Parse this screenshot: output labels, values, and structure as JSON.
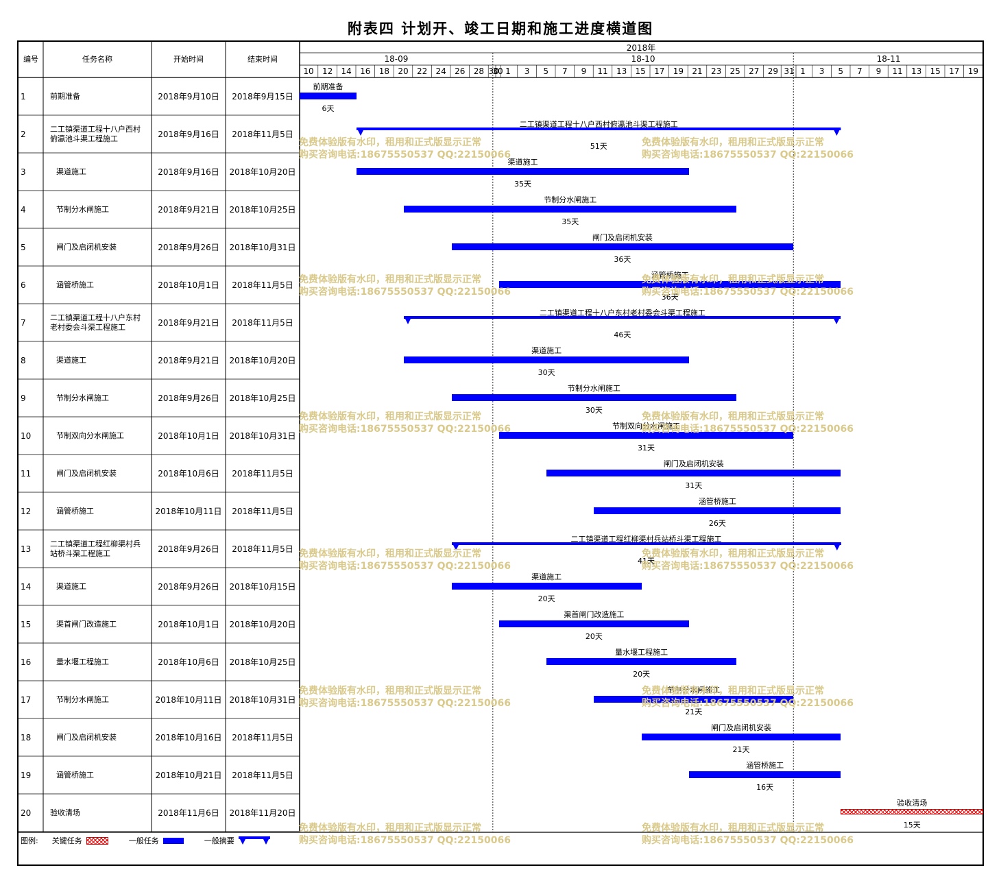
{
  "title": "附表四  计划开、竣工日期和施工进度横道图",
  "columns": {
    "no": "编号",
    "name": "任务名称",
    "start": "开始时间",
    "end": "结束时间"
  },
  "timeline": {
    "year_label": "2018年",
    "months": [
      "18-09",
      "18-10",
      "18-11"
    ],
    "day_ticks": [
      "10",
      "12",
      "14",
      "16",
      "18",
      "20",
      "22",
      "24",
      "26",
      "28",
      "30",
      "30",
      "1",
      "3",
      "5",
      "7",
      "9",
      "11",
      "13",
      "15",
      "17",
      "19",
      "21",
      "23",
      "25",
      "27",
      "29",
      "31",
      "1",
      "3",
      "5",
      "7",
      "9",
      "11",
      "13",
      "15",
      "17",
      "19"
    ]
  },
  "tasks": [
    {
      "no": "1",
      "name": "前期准备",
      "start": "2018年9月10日",
      "end": "2018年9月15日",
      "s": 0,
      "e": 6,
      "type": "normal",
      "bar_label": "前期准备",
      "duration": "6天",
      "indent": false
    },
    {
      "no": "2",
      "name": "二工镇渠道工程十八户西村俯瀛池斗渠工程施工",
      "start": "2018年9月16日",
      "end": "2018年11月5日",
      "s": 6,
      "e": 57,
      "type": "summary",
      "bar_label": "二工镇渠道工程十八户西村俯瀛池斗渠工程施工",
      "duration": "51天",
      "indent": false
    },
    {
      "no": "3",
      "name": "渠道施工",
      "start": "2018年9月16日",
      "end": "2018年10月20日",
      "s": 6,
      "e": 41,
      "type": "normal",
      "bar_label": "渠道施工",
      "duration": "35天",
      "indent": true
    },
    {
      "no": "4",
      "name": "节制分水闸施工",
      "start": "2018年9月21日",
      "end": "2018年10月25日",
      "s": 11,
      "e": 46,
      "type": "normal",
      "bar_label": "节制分水闸施工",
      "duration": "35天",
      "indent": true
    },
    {
      "no": "5",
      "name": "闸门及启闭机安装",
      "start": "2018年9月26日",
      "end": "2018年10月31日",
      "s": 16,
      "e": 52,
      "type": "normal",
      "bar_label": "闸门及启闭机安装",
      "duration": "36天",
      "indent": true
    },
    {
      "no": "6",
      "name": "涵管桥施工",
      "start": "2018年10月1日",
      "end": "2018年11月5日",
      "s": 21,
      "e": 57,
      "type": "normal",
      "bar_label": "涵管桥施工",
      "duration": "36天",
      "indent": true
    },
    {
      "no": "7",
      "name": "二工镇渠道工程十八户东村老村委会斗渠工程施工",
      "start": "2018年9月21日",
      "end": "2018年11月5日",
      "s": 11,
      "e": 57,
      "type": "summary",
      "bar_label": "二工镇渠道工程十八户东村老村委会斗渠工程施工",
      "duration": "46天",
      "indent": false
    },
    {
      "no": "8",
      "name": "渠道施工",
      "start": "2018年9月21日",
      "end": "2018年10月20日",
      "s": 11,
      "e": 41,
      "type": "normal",
      "bar_label": "渠道施工",
      "duration": "30天",
      "indent": true
    },
    {
      "no": "9",
      "name": "节制分水闸施工",
      "start": "2018年9月26日",
      "end": "2018年10月25日",
      "s": 16,
      "e": 46,
      "type": "normal",
      "bar_label": "节制分水闸施工",
      "duration": "30天",
      "indent": true
    },
    {
      "no": "10",
      "name": "节制双向分水闸施工",
      "start": "2018年10月1日",
      "end": "2018年10月31日",
      "s": 21,
      "e": 52,
      "type": "normal",
      "bar_label": "节制双向分水闸施工",
      "duration": "31天",
      "indent": true
    },
    {
      "no": "11",
      "name": "闸门及启闭机安装",
      "start": "2018年10月6日",
      "end": "2018年11月5日",
      "s": 26,
      "e": 57,
      "type": "normal",
      "bar_label": "闸门及启闭机安装",
      "duration": "31天",
      "indent": true
    },
    {
      "no": "12",
      "name": "涵管桥施工",
      "start": "2018年10月11日",
      "end": "2018年11月5日",
      "s": 31,
      "e": 57,
      "type": "normal",
      "bar_label": "涵管桥施工",
      "duration": "26天",
      "indent": true
    },
    {
      "no": "13",
      "name": "二工镇渠道工程红柳渠村兵站桥斗渠工程施工",
      "start": "2018年9月26日",
      "end": "2018年11月5日",
      "s": 16,
      "e": 57,
      "type": "summary",
      "bar_label": "二工镇渠道工程红柳渠村兵站桥斗渠工程施工",
      "duration": "41天",
      "indent": false
    },
    {
      "no": "14",
      "name": "渠道施工",
      "start": "2018年9月26日",
      "end": "2018年10月15日",
      "s": 16,
      "e": 36,
      "type": "normal",
      "bar_label": "渠道施工",
      "duration": "20天",
      "indent": true
    },
    {
      "no": "15",
      "name": "渠首闸门改造施工",
      "start": "2018年10月1日",
      "end": "2018年10月20日",
      "s": 21,
      "e": 41,
      "type": "normal",
      "bar_label": "渠首闸门改造施工",
      "duration": "20天",
      "indent": true
    },
    {
      "no": "16",
      "name": "量水堰工程施工",
      "start": "2018年10月6日",
      "end": "2018年10月25日",
      "s": 26,
      "e": 46,
      "type": "normal",
      "bar_label": "量水堰工程施工",
      "duration": "20天",
      "indent": true
    },
    {
      "no": "17",
      "name": "节制分水闸施工",
      "start": "2018年10月11日",
      "end": "2018年10月31日",
      "s": 31,
      "e": 52,
      "type": "normal",
      "bar_label": "节制分水闸施工",
      "duration": "21天",
      "indent": true
    },
    {
      "no": "18",
      "name": "闸门及启闭机安装",
      "start": "2018年10月16日",
      "end": "2018年11月5日",
      "s": 36,
      "e": 57,
      "type": "normal",
      "bar_label": "闸门及启闭机安装",
      "duration": "21天",
      "indent": true
    },
    {
      "no": "19",
      "name": "涵管桥施工",
      "start": "2018年10月21日",
      "end": "2018年11月5日",
      "s": 41,
      "e": 57,
      "type": "normal",
      "bar_label": "涵管桥施工",
      "duration": "16天",
      "indent": true
    },
    {
      "no": "20",
      "name": "验收清场",
      "start": "2018年11月6日",
      "end": "2018年11月20日",
      "s": 57,
      "e": 72,
      "type": "critical",
      "bar_label": "验收清场",
      "duration": "15天",
      "indent": false
    }
  ],
  "legend": {
    "label": "图例:",
    "critical": "关键任务",
    "normal": "一般任务",
    "summary": "一般摘要"
  },
  "watermark": {
    "line1": "免费体验版有水印，租用和正式版显示正常",
    "line2": "购买咨询电话:18675550537 QQ:22150066"
  },
  "colors": {
    "normal_bar": "#0000ff",
    "critical_bar": "#e00000",
    "watermark": "#d9c98a"
  }
}
